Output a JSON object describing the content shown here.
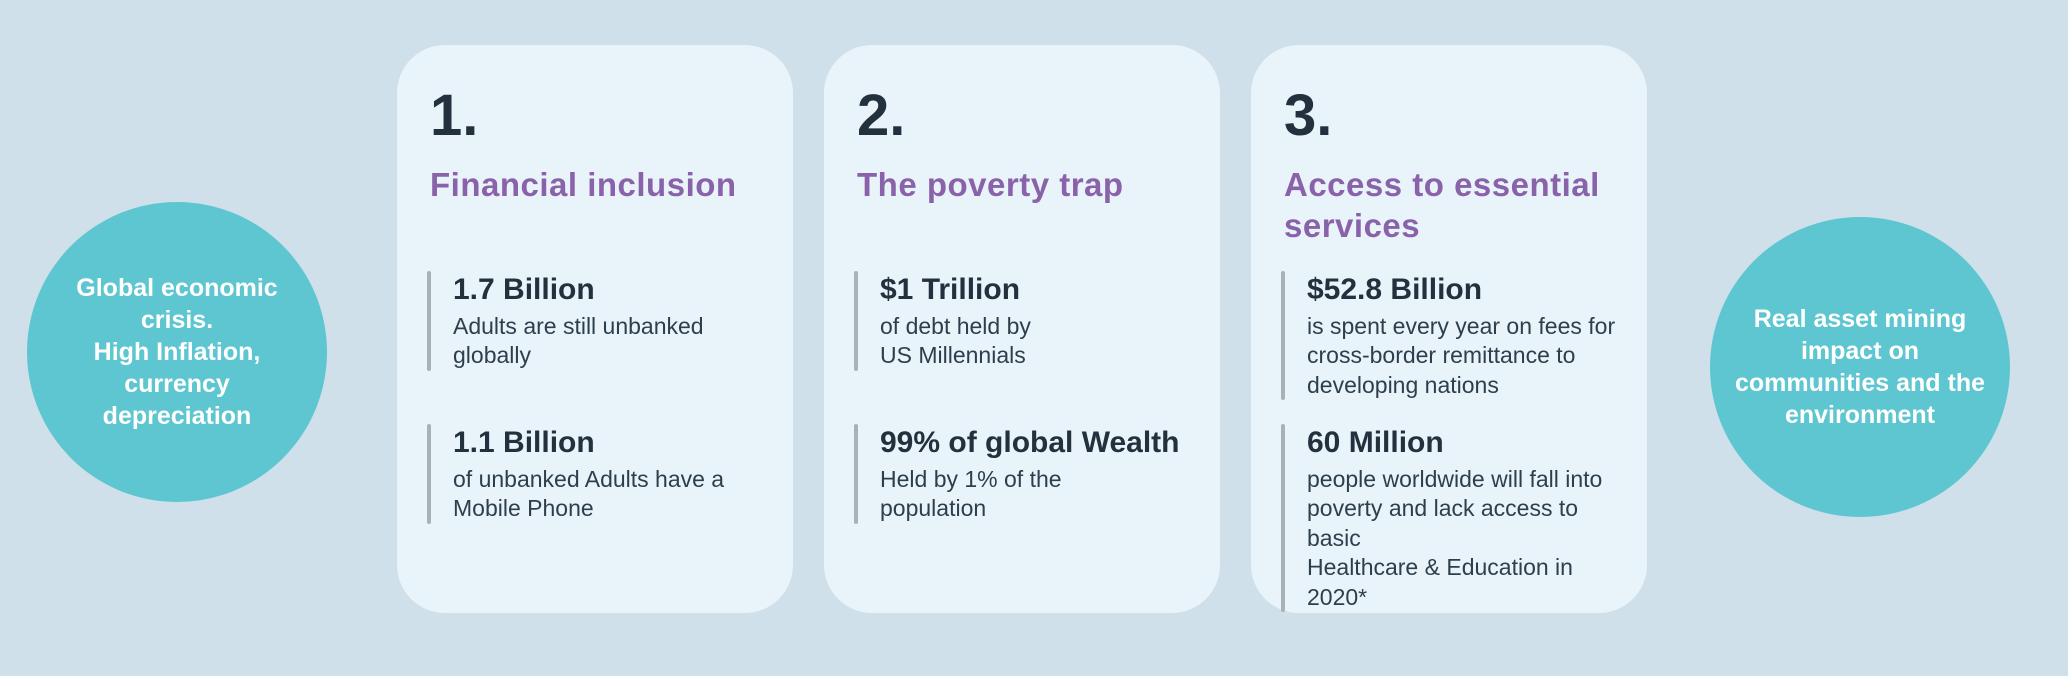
{
  "colors": {
    "page_background": "#cfe0ea",
    "card_background": "#e9f3fa",
    "circle_teal": "#5dc6d0",
    "heading_purple": "#8a62aa",
    "navy_dark": "#22313d",
    "body_text": "#2d3f4c",
    "bar_gray": "#a9b1b8",
    "circle_text": "#ffffff"
  },
  "left_circle": {
    "text": "Global economic\ncrisis.\nHigh Inflation,\ncurrency\ndepreciation"
  },
  "right_circle": {
    "text": "Real asset  mining\nimpact on\ncommunities and the\nenvironment"
  },
  "cards": [
    {
      "number": "1.",
      "title": "Financial inclusion",
      "stats": [
        {
          "value": "1.7 Billion",
          "description": "Adults are still unbanked\nglobally"
        },
        {
          "value": "1.1 Billion",
          "description": "of unbanked Adults have a\nMobile Phone"
        }
      ]
    },
    {
      "number": "2.",
      "title": "The poverty trap",
      "stats": [
        {
          "value": "$1 Trillion",
          "description": "of debt held by\nUS Millennials"
        },
        {
          "value": "99% of global Wealth",
          "description": "Held by 1% of the\npopulation"
        }
      ]
    },
    {
      "number": "3.",
      "title": "Access to essential\nservices",
      "stats": [
        {
          "value": "$52.8 Billion",
          "description": "is spent every year on fees for\ncross-border remittance to\ndeveloping nations"
        },
        {
          "value": "60 Million",
          "description": "people worldwide will fall into\npoverty and lack access to basic\nHealthcare & Education in 2020*"
        }
      ]
    }
  ]
}
